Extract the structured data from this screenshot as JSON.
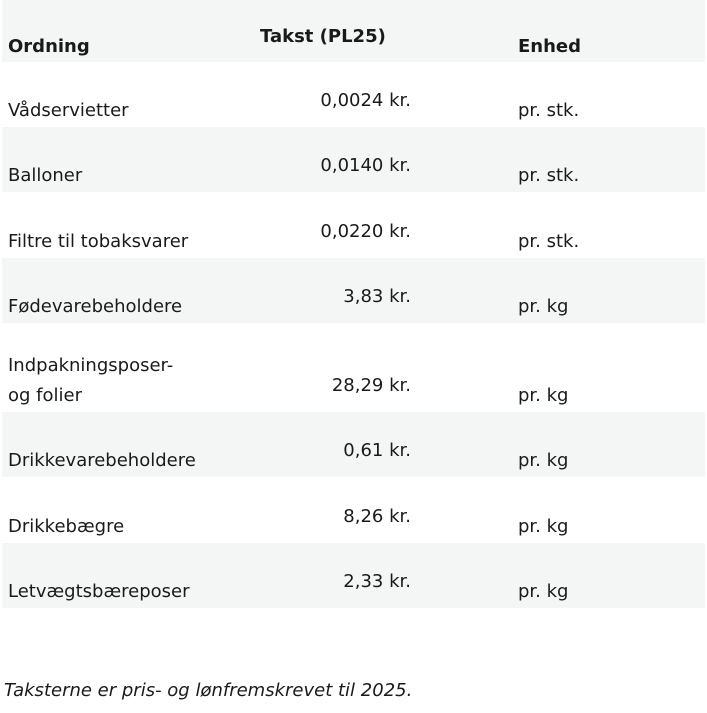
{
  "table": {
    "header": [
      "Ordning",
      "Takst (PL25)",
      "Enhed"
    ],
    "rows": [
      [
        "Vådservietter",
        "0,0024 kr.",
        "pr. stk."
      ],
      [
        "Balloner",
        "0,0140 kr.",
        "pr. stk."
      ],
      [
        "Filtre til tobaksvarer",
        "0,0220 kr.",
        "pr. stk."
      ],
      [
        "Fødevarebeholdere",
        "3,83 kr.",
        "pr. kg"
      ],
      [
        "Indpakningsposer-\nog folier",
        "28,29 kr.",
        "pr. kg"
      ],
      [
        "Drikkevarebeholdere",
        "0,61 kr.",
        "pr. kg"
      ],
      [
        "Drikkebægre",
        "8,26 kr.",
        "pr. kg"
      ],
      [
        "Letvægtsbæreposer",
        "2,33 kr.",
        "pr. kg"
      ]
    ]
  },
  "footnote": "Taksterne er pris- og lønfremskrevet til 2025."
}
